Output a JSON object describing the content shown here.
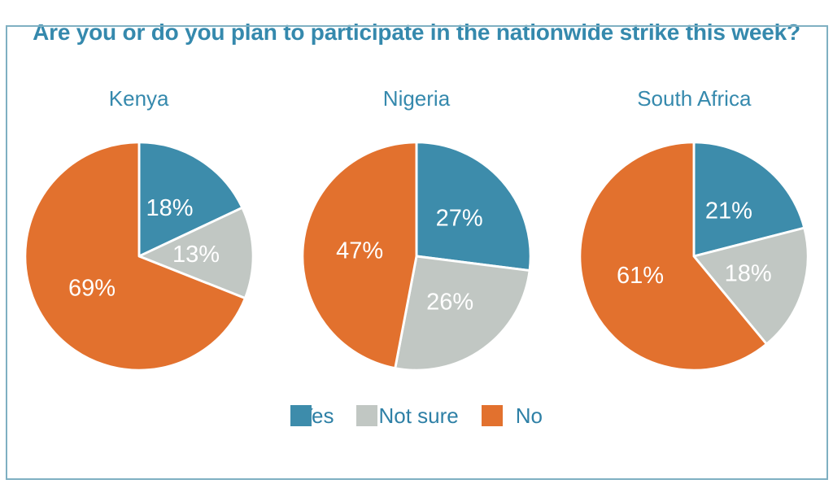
{
  "chart_data": {
    "type": "pie",
    "title": "Are you or do you plan to participate in the nationwide strike this week?",
    "categories": [
      "Yes",
      "Not sure",
      "No"
    ],
    "colors": [
      "#3d8cab",
      "#c1c7c3",
      "#e2712e"
    ],
    "series": [
      {
        "name": "Kenya",
        "values": [
          18,
          13,
          69
        ]
      },
      {
        "name": "Nigeria",
        "values": [
          27,
          26,
          47
        ]
      },
      {
        "name": "South Africa",
        "values": [
          21,
          18,
          61
        ]
      }
    ],
    "start_angle_deg": 0,
    "direction": "clockwise",
    "data_labels": "percent",
    "data_label_suffix": "%",
    "legend_position": "bottom",
    "slice_border_color": "#ffffff",
    "title_color": "#3589ad",
    "frame_border_color": "#7fb0c2"
  }
}
